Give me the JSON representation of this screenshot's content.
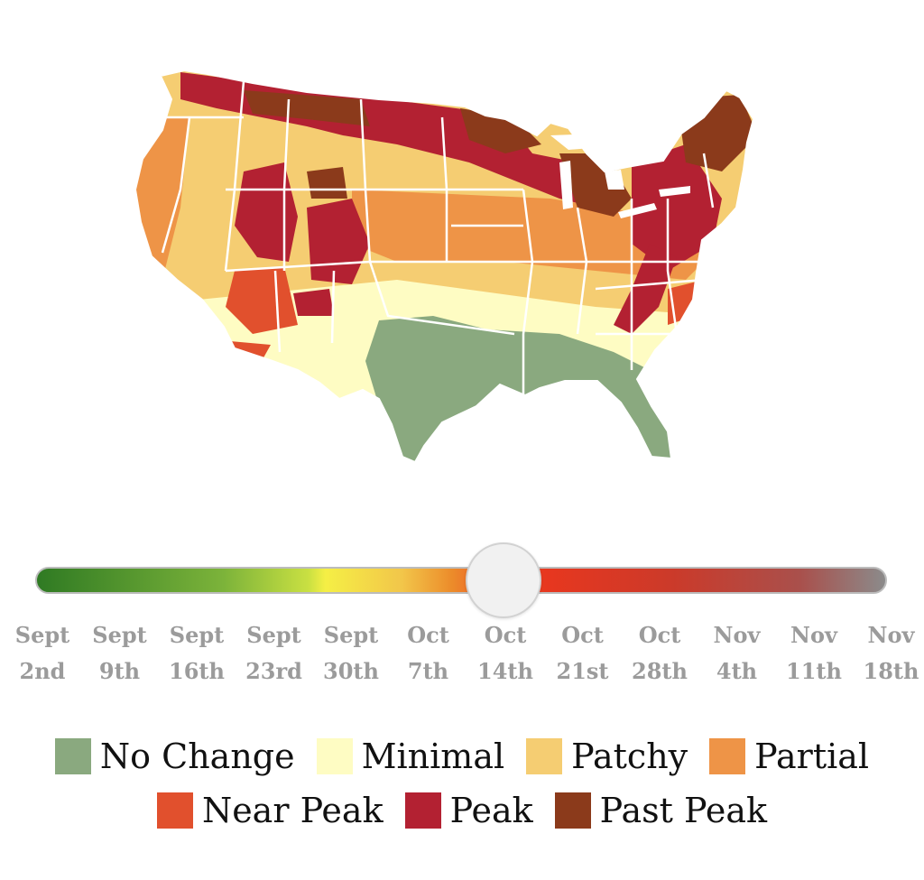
{
  "colors": {
    "no_change": "#8aa97f",
    "minimal": "#fefcc3",
    "patchy": "#f5cd72",
    "partial": "#ee9447",
    "near_peak": "#e1502d",
    "peak": "#b32132",
    "past_peak": "#8b3a1b"
  },
  "slider": {
    "selected_index": 6
  },
  "dates": [
    {
      "month": "Sept",
      "day": "2nd"
    },
    {
      "month": "Sept",
      "day": "9th"
    },
    {
      "month": "Sept",
      "day": "16th"
    },
    {
      "month": "Sept",
      "day": "23rd"
    },
    {
      "month": "Sept",
      "day": "30th"
    },
    {
      "month": "Oct",
      "day": "7th"
    },
    {
      "month": "Oct",
      "day": "14th"
    },
    {
      "month": "Oct",
      "day": "21st"
    },
    {
      "month": "Oct",
      "day": "28th"
    },
    {
      "month": "Nov",
      "day": "4th"
    },
    {
      "month": "Nov",
      "day": "11th"
    },
    {
      "month": "Nov",
      "day": "18th"
    }
  ],
  "legend": {
    "items": [
      {
        "label": "No Change",
        "color": "#8aa97f"
      },
      {
        "label": "Minimal",
        "color": "#fefcc3"
      },
      {
        "label": "Patchy",
        "color": "#f5cd72"
      },
      {
        "label": "Partial",
        "color": "#ee9447"
      },
      {
        "label": "Near Peak",
        "color": "#e1502d"
      },
      {
        "label": "Peak",
        "color": "#b32132"
      },
      {
        "label": "Past Peak",
        "color": "#8b3a1b"
      }
    ]
  }
}
